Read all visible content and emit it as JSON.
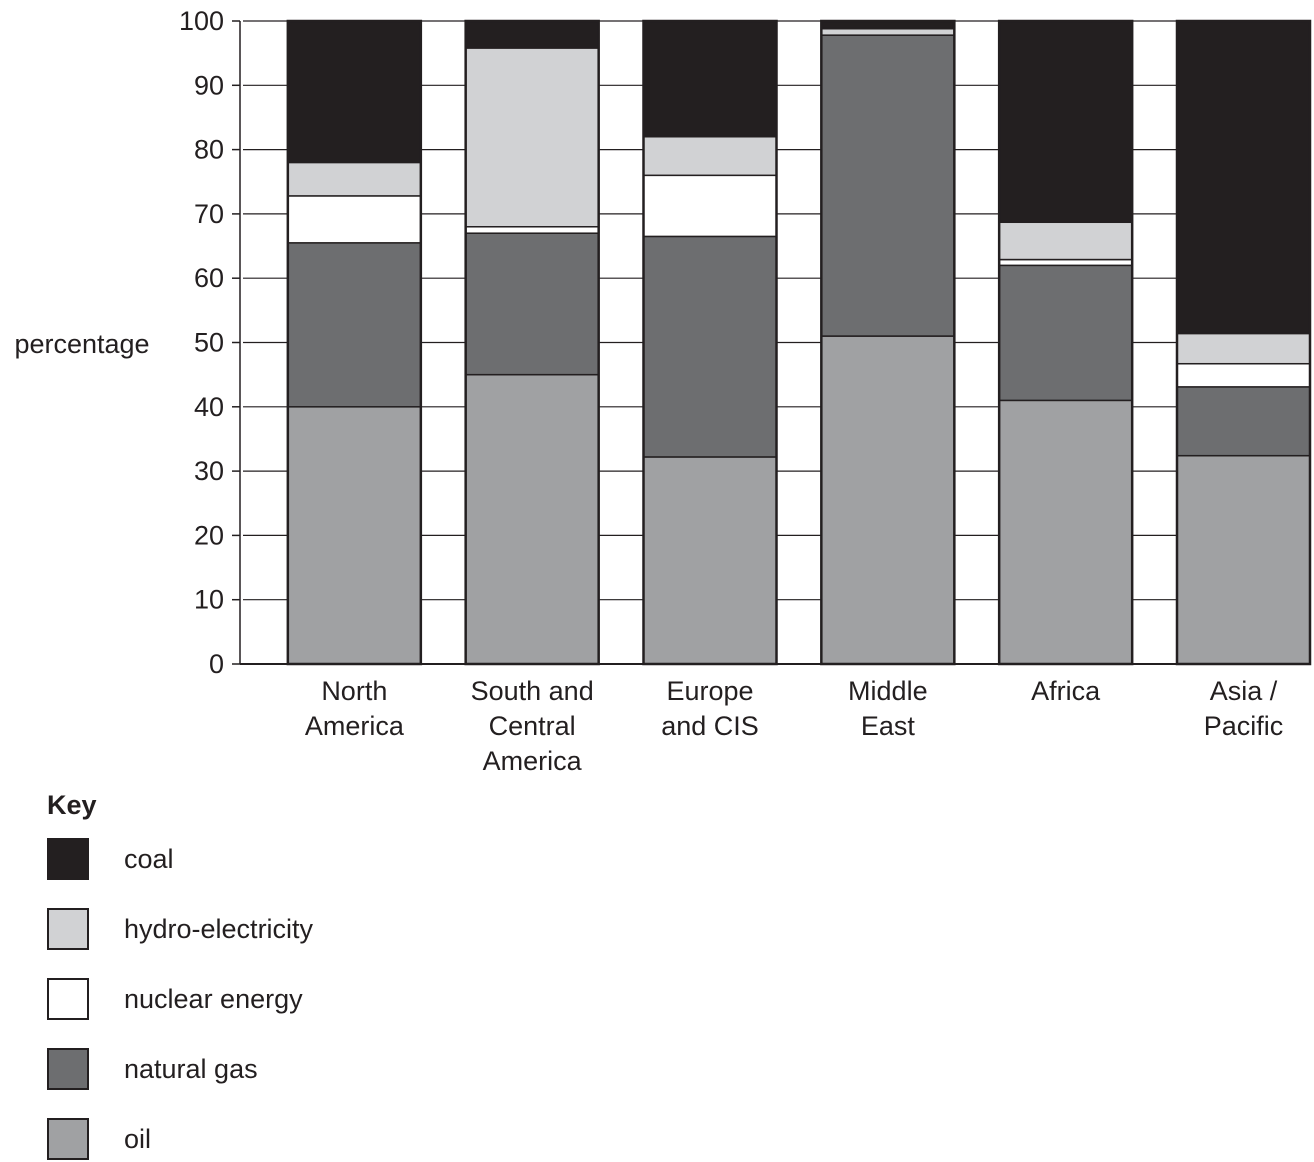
{
  "chart_data": {
    "type": "bar",
    "stacked": true,
    "title": "",
    "xlabel": "",
    "ylabel": "percentage",
    "ylim": [
      0,
      100
    ],
    "yticks": [
      "0",
      "10",
      "20",
      "30",
      "40",
      "50",
      "60",
      "70",
      "80",
      "90",
      "100"
    ],
    "grid": true,
    "categories": [
      [
        "North",
        "America"
      ],
      [
        "South and",
        "Central",
        "America"
      ],
      [
        "Europe",
        "and CIS"
      ],
      [
        "Middle",
        "East"
      ],
      [
        "Africa"
      ],
      [
        "Asia /",
        "Pacific"
      ]
    ],
    "series": [
      {
        "name": "oil",
        "color": "#a0a1a3",
        "values": [
          40,
          45,
          32.2,
          51,
          41,
          32.4
        ]
      },
      {
        "name": "natural gas",
        "color": "#6d6e70",
        "values": [
          25.5,
          22,
          34.3,
          46.8,
          21,
          10.7
        ]
      },
      {
        "name": "nuclear energy",
        "color": "#ffffff",
        "values": [
          7.3,
          1,
          9.5,
          0,
          0.9,
          3.6
        ]
      },
      {
        "name": "hydro-electricity",
        "color": "#d1d2d4",
        "values": [
          5.2,
          27.8,
          6,
          1,
          5.8,
          4.7
        ]
      },
      {
        "name": "coal",
        "color": "#231f20",
        "values": [
          22,
          4.2,
          18,
          1.2,
          31.3,
          48.6
        ]
      }
    ],
    "legend": {
      "title": "Key",
      "placement": "bottom-left",
      "order": [
        "coal",
        "hydro-electricity",
        "nuclear energy",
        "natural gas",
        "oil"
      ]
    }
  }
}
